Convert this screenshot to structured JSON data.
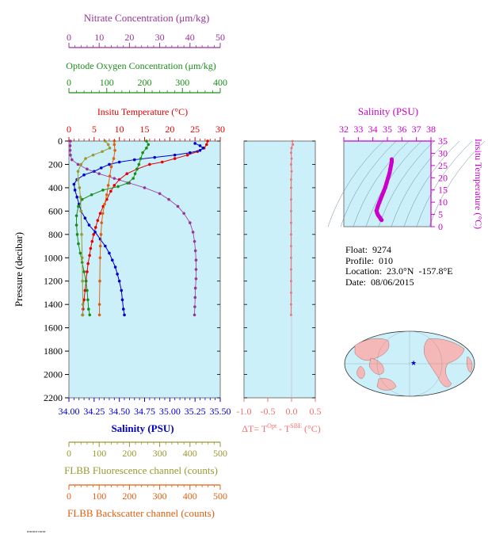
{
  "axes": {
    "nitrate_title": "Nitrate Concentration (μm/kg)",
    "nitrate_ticks": [
      "0",
      "10",
      "20",
      "30",
      "40",
      "50"
    ],
    "oxygen_title": "Optode Oxygen Concentration (μm/kg)",
    "oxygen_ticks": [
      "0",
      "100",
      "200",
      "300",
      "400"
    ],
    "temperature_title": "Insitu Temperature (°C)",
    "temperature_ticks": [
      "0",
      "5",
      "10",
      "15",
      "20",
      "25",
      "30"
    ],
    "pressure_title": "Pressure (decibar)",
    "pressure_ticks": [
      "0",
      "200",
      "400",
      "600",
      "800",
      "1000",
      "1200",
      "1400",
      "1600",
      "1800",
      "2000",
      "2200"
    ],
    "salinity_title": "Salinity (PSU)",
    "salinity_ticks": [
      "34.00",
      "34.25",
      "34.50",
      "34.75",
      "35.00",
      "35.25",
      "35.50"
    ],
    "fluorescence_title": "FLBB Fluorescence channel (counts)",
    "fluorescence_ticks": [
      "0",
      "100",
      "200",
      "300",
      "400",
      "500"
    ],
    "backscatter_title": "FLBB Backscatter channel (counts)",
    "backscatter_ticks": [
      "0",
      "100",
      "200",
      "300",
      "400",
      "500"
    ],
    "dt_title": "ΔT= T",
    "dt_sup1": "Opt",
    "dt_mid": " - T",
    "dt_sup2": "SBE",
    "dt_unit": " (°C)",
    "dt_ticks": [
      "-1.0",
      "-0.5",
      "0.0",
      "0.5"
    ],
    "ts_title": "Salinity (PSU)",
    "ts_xticks": [
      "32",
      "33",
      "34",
      "35",
      "36",
      "37",
      "38"
    ],
    "ts_ylabel": "Insitu Temperature (°C)",
    "ts_yticks": [
      "0",
      "5",
      "10",
      "15",
      "20",
      "25",
      "30",
      "35"
    ]
  },
  "info": {
    "float": "Float:  9274",
    "profile": "Profile:  010",
    "location": "Location:  23.0°N  -157.8°E",
    "date": "Date:  08/06/2015"
  },
  "footer_note": "rrrrrrrrrr rrrrrrr",
  "colors": {
    "plot_bg": "#ccf0fa",
    "nitrate": "#993399",
    "oxygen": "#1a8c1a",
    "temperature": "#e60000",
    "salinity": "#0000cc",
    "fluorescence": "#999933",
    "backscatter": "#e06010",
    "delta_t": "#f07070",
    "ts": "#cc00cc"
  },
  "chart_data": [
    {
      "type": "line",
      "title": "",
      "ylabel": "Pressure (decibar)",
      "ylim": [
        0,
        2200
      ],
      "y_reversed": true,
      "series": [
        {
          "name": "Insitu Temperature (°C)",
          "xlim": [
            0,
            30
          ],
          "points": [
            [
              27.5,
              0
            ],
            [
              27.3,
              30
            ],
            [
              26.8,
              60
            ],
            [
              25.5,
              90
            ],
            [
              23.5,
              120
            ],
            [
              21,
              150
            ],
            [
              18.5,
              180
            ],
            [
              16,
              200
            ],
            [
              13.5,
              240
            ],
            [
              11.5,
              280
            ],
            [
              10,
              330
            ],
            [
              9,
              380
            ],
            [
              8.3,
              430
            ],
            [
              7.5,
              500
            ],
            [
              6.8,
              560
            ],
            [
              6.2,
              620
            ],
            [
              5.7,
              680
            ],
            [
              5.3,
              740
            ],
            [
              4.9,
              800
            ],
            [
              4.6,
              860
            ],
            [
              4.3,
              920
            ],
            [
              4.1,
              980
            ],
            [
              3.8,
              1050
            ],
            [
              3.6,
              1120
            ],
            [
              3.4,
              1200
            ],
            [
              3.2,
              1280
            ],
            [
              3.0,
              1360
            ],
            [
              2.8,
              1440
            ],
            [
              2.7,
              1490
            ]
          ]
        },
        {
          "name": "Salinity (PSU)",
          "xlim": [
            34.0,
            35.5
          ],
          "points": [
            [
              35.25,
              20
            ],
            [
              35.3,
              40
            ],
            [
              35.33,
              60
            ],
            [
              35.3,
              80
            ],
            [
              35.2,
              100
            ],
            [
              35.05,
              120
            ],
            [
              34.85,
              140
            ],
            [
              34.65,
              160
            ],
            [
              34.5,
              180
            ],
            [
              34.4,
              200
            ],
            [
              34.32,
              230
            ],
            [
              34.25,
              260
            ],
            [
              34.15,
              290
            ],
            [
              34.08,
              330
            ],
            [
              34.05,
              370
            ],
            [
              34.06,
              420
            ],
            [
              34.08,
              480
            ],
            [
              34.1,
              540
            ],
            [
              34.12,
              600
            ],
            [
              34.16,
              660
            ],
            [
              34.2,
              720
            ],
            [
              34.26,
              780
            ],
            [
              34.31,
              840
            ],
            [
              34.36,
              900
            ],
            [
              34.4,
              960
            ],
            [
              34.43,
              1020
            ],
            [
              34.46,
              1080
            ],
            [
              34.48,
              1140
            ],
            [
              34.5,
              1200
            ],
            [
              34.52,
              1280
            ],
            [
              34.53,
              1360
            ],
            [
              34.54,
              1440
            ],
            [
              34.55,
              1490
            ]
          ]
        },
        {
          "name": "Nitrate Concentration (μm/kg)",
          "xlim": [
            0,
            50
          ],
          "points": [
            [
              0.5,
              0
            ],
            [
              0.4,
              40
            ],
            [
              0.4,
              80
            ],
            [
              0.5,
              120
            ],
            [
              1,
              160
            ],
            [
              3,
              200
            ],
            [
              6,
              240
            ],
            [
              10,
              280
            ],
            [
              15,
              320
            ],
            [
              20,
              360
            ],
            [
              25,
              400
            ],
            [
              30,
              450
            ],
            [
              33,
              500
            ],
            [
              36,
              560
            ],
            [
              38,
              620
            ],
            [
              40,
              700
            ],
            [
              41,
              780
            ],
            [
              41.5,
              860
            ],
            [
              41.8,
              940
            ],
            [
              42,
              1020
            ],
            [
              42,
              1100
            ],
            [
              42,
              1180
            ],
            [
              41.8,
              1260
            ],
            [
              41.7,
              1340
            ],
            [
              41.6,
              1420
            ],
            [
              41.5,
              1490
            ]
          ]
        },
        {
          "name": "Optode Oxygen Concentration (μm/kg)",
          "xlim": [
            0,
            400
          ],
          "points": [
            [
              205,
              0
            ],
            [
              210,
              30
            ],
            [
              205,
              60
            ],
            [
              195,
              100
            ],
            [
              190,
              150
            ],
            [
              185,
              200
            ],
            [
              180,
              240
            ],
            [
              175,
              280
            ],
            [
              170,
              320
            ],
            [
              155,
              360
            ],
            [
              130,
              390
            ],
            [
              90,
              420
            ],
            [
              60,
              460
            ],
            [
              35,
              500
            ],
            [
              25,
              560
            ],
            [
              20,
              640
            ],
            [
              20,
              720
            ],
            [
              22,
              800
            ],
            [
              25,
              880
            ],
            [
              30,
              960
            ],
            [
              35,
              1040
            ],
            [
              40,
              1120
            ],
            [
              45,
              1200
            ],
            [
              48,
              1280
            ],
            [
              50,
              1360
            ],
            [
              52,
              1440
            ],
            [
              55,
              1490
            ]
          ]
        },
        {
          "name": "FLBB Fluorescence channel (counts)",
          "xlim": [
            0,
            500
          ],
          "points": [
            [
              120,
              0
            ],
            [
              130,
              30
            ],
            [
              135,
              60
            ],
            [
              110,
              90
            ],
            [
              80,
              120
            ],
            [
              55,
              150
            ],
            [
              40,
              200
            ],
            [
              30,
              260
            ],
            [
              30,
              330
            ],
            [
              35,
              400
            ],
            [
              38,
              480
            ],
            [
              40,
              600
            ],
            [
              42,
              800
            ],
            [
              44,
              1000
            ],
            [
              45,
              1200
            ],
            [
              46,
              1400
            ],
            [
              46,
              1490
            ]
          ]
        },
        {
          "name": "FLBB Backscatter channel (counts)",
          "xlim": [
            0,
            500
          ],
          "points": [
            [
              150,
              0
            ],
            [
              150,
              30
            ],
            [
              152,
              80
            ],
            [
              148,
              150
            ],
            [
              140,
              220
            ],
            [
              135,
              300
            ],
            [
              130,
              380
            ],
            [
              125,
              460
            ],
            [
              118,
              540
            ],
            [
              112,
              620
            ],
            [
              108,
              700
            ],
            [
              106,
              800
            ],
            [
              104,
              900
            ],
            [
              103,
              1000
            ],
            [
              102,
              1200
            ],
            [
              101,
              1400
            ],
            [
              101,
              1490
            ]
          ]
        }
      ]
    },
    {
      "type": "line",
      "xlabel": "ΔT= T^Opt - T^SBE (°C)",
      "xlim": [
        -1.0,
        0.5
      ],
      "ylim": [
        0,
        2200
      ],
      "series": [
        {
          "name": "ΔT",
          "points": [
            [
              0.02,
              0
            ],
            [
              0.03,
              30
            ],
            [
              0.0,
              60
            ],
            [
              -0.01,
              100
            ],
            [
              0.0,
              150
            ],
            [
              -0.01,
              200
            ],
            [
              0.0,
              260
            ],
            [
              -0.01,
              330
            ],
            [
              -0.01,
              400
            ],
            [
              -0.01,
              500
            ],
            [
              -0.01,
              600
            ],
            [
              -0.01,
              700
            ],
            [
              -0.01,
              800
            ],
            [
              -0.01,
              900
            ],
            [
              -0.01,
              1000
            ],
            [
              -0.01,
              1100
            ],
            [
              -0.01,
              1200
            ],
            [
              -0.01,
              1300
            ],
            [
              -0.01,
              1400
            ],
            [
              -0.01,
              1490
            ]
          ]
        }
      ]
    },
    {
      "type": "scatter",
      "title": "Salinity (PSU)",
      "xlim": [
        32,
        38
      ],
      "ylim": [
        0,
        35
      ],
      "series": [
        {
          "name": "T-S",
          "points": [
            [
              35.3,
              27.5
            ],
            [
              35.3,
              26.5
            ],
            [
              35.25,
              25
            ],
            [
              35.2,
              23.5
            ],
            [
              35.15,
              22
            ],
            [
              35.05,
              20
            ],
            [
              34.95,
              18
            ],
            [
              34.85,
              16
            ],
            [
              34.75,
              14.5
            ],
            [
              34.65,
              13
            ],
            [
              34.55,
              11.5
            ],
            [
              34.45,
              10
            ],
            [
              34.35,
              8.5
            ],
            [
              34.3,
              7.5
            ],
            [
              34.25,
              6.5
            ],
            [
              34.3,
              5.5
            ],
            [
              34.35,
              4.8
            ],
            [
              34.42,
              4.2
            ],
            [
              34.5,
              3.6
            ],
            [
              34.55,
              3.0
            ],
            [
              34.6,
              2.7
            ]
          ]
        }
      ]
    }
  ]
}
